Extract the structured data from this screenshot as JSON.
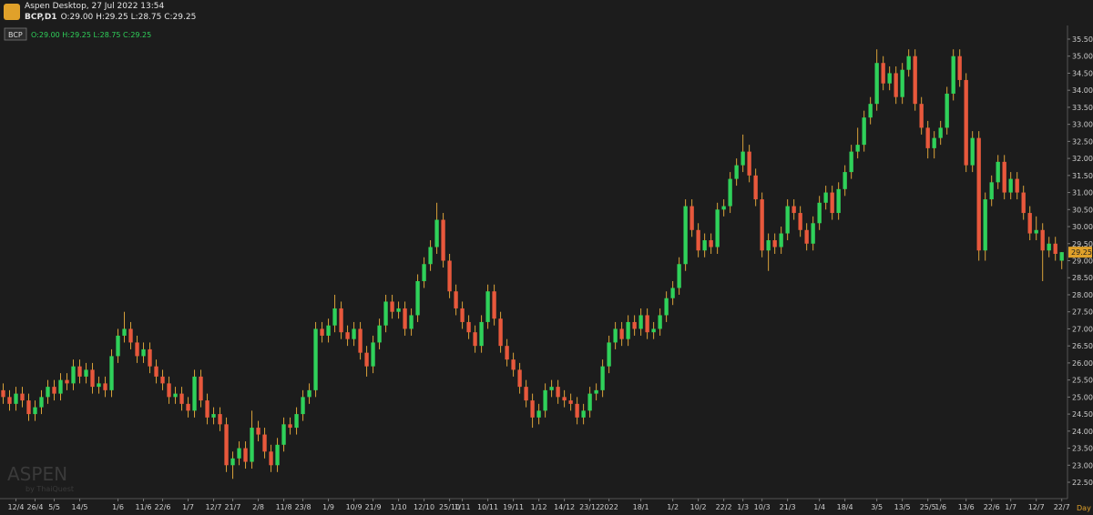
{
  "header": {
    "app": "Aspen Desktop, 27 Jul 2022 13:54",
    "symbol": "BCP,D1",
    "ohlc": "O:29.00 H:29.25 L:28.75 C:29.25"
  },
  "legend": {
    "symbol": "BCP",
    "ohlc": "O:29.00 H:29.25 L:28.75 C:29.25"
  },
  "watermark": {
    "brand": "ASPEN",
    "by": "by ThaiQuest"
  },
  "chart_data": {
    "type": "candlestick",
    "x_unit": "Day",
    "up_color": "#2fd15a",
    "down_color": "#e8583c",
    "wick_color": "#d9a23a",
    "xlim": [
      -0.5,
      166.9
    ],
    "xticks": [
      {
        "value": 2,
        "label": "12/4"
      },
      {
        "value": 5,
        "label": "26/4"
      },
      {
        "value": 8,
        "label": "5/5"
      },
      {
        "value": 12,
        "label": "14/5"
      },
      {
        "value": 18,
        "label": "1/6"
      },
      {
        "value": 22,
        "label": "11/6"
      },
      {
        "value": 25,
        "label": "22/6"
      },
      {
        "value": 29,
        "label": "1/7"
      },
      {
        "value": 33,
        "label": "12/7"
      },
      {
        "value": 36,
        "label": "21/7"
      },
      {
        "value": 40,
        "label": "2/8"
      },
      {
        "value": 44,
        "label": "11/8"
      },
      {
        "value": 47,
        "label": "23/8"
      },
      {
        "value": 51,
        "label": "1/9"
      },
      {
        "value": 55,
        "label": "10/9"
      },
      {
        "value": 58,
        "label": "21/9"
      },
      {
        "value": 62,
        "label": "1/10"
      },
      {
        "value": 66,
        "label": "12/10"
      },
      {
        "value": 70,
        "label": "25/10"
      },
      {
        "value": 72,
        "label": "1/11"
      },
      {
        "value": 76,
        "label": "10/11"
      },
      {
        "value": 80,
        "label": "19/11"
      },
      {
        "value": 84,
        "label": "1/12"
      },
      {
        "value": 88,
        "label": "14/12"
      },
      {
        "value": 92,
        "label": "23/12"
      },
      {
        "value": 95,
        "label": "2022"
      },
      {
        "value": 100,
        "label": "18/1"
      },
      {
        "value": 105,
        "label": "1/2"
      },
      {
        "value": 109,
        "label": "10/2"
      },
      {
        "value": 113,
        "label": "22/2"
      },
      {
        "value": 116,
        "label": "1/3"
      },
      {
        "value": 119,
        "label": "10/3"
      },
      {
        "value": 123,
        "label": "21/3"
      },
      {
        "value": 128,
        "label": "1/4"
      },
      {
        "value": 132,
        "label": "18/4"
      },
      {
        "value": 137,
        "label": "3/5"
      },
      {
        "value": 141,
        "label": "13/5"
      },
      {
        "value": 145,
        "label": "25/5"
      },
      {
        "value": 147,
        "label": "1/6"
      },
      {
        "value": 151,
        "label": "13/6"
      },
      {
        "value": 155,
        "label": "22/6"
      },
      {
        "value": 158,
        "label": "1/7"
      },
      {
        "value": 162,
        "label": "12/7"
      },
      {
        "value": 166,
        "label": "22/7"
      }
    ],
    "ylim": [
      22.02,
      35.9
    ],
    "yticks": [
      {
        "value": 22.5,
        "label": "22.50"
      },
      {
        "value": 23,
        "label": "23.00"
      },
      {
        "value": 23.5,
        "label": "23.50"
      },
      {
        "value": 24,
        "label": "24.00"
      },
      {
        "value": 24.5,
        "label": "24.50"
      },
      {
        "value": 25,
        "label": "25.00"
      },
      {
        "value": 25.5,
        "label": "25.50"
      },
      {
        "value": 26,
        "label": "26.00"
      },
      {
        "value": 26.5,
        "label": "26.50"
      },
      {
        "value": 27,
        "label": "27.00"
      },
      {
        "value": 27.5,
        "label": "27.50"
      },
      {
        "value": 28,
        "label": "28.00"
      },
      {
        "value": 28.5,
        "label": "28.50"
      },
      {
        "value": 29,
        "label": "29.00"
      },
      {
        "value": 29.5,
        "label": "29.50"
      },
      {
        "value": 30,
        "label": "30.00"
      },
      {
        "value": 30.5,
        "label": "30.50"
      },
      {
        "value": 31,
        "label": "31.00"
      },
      {
        "value": 31.5,
        "label": "31.50"
      },
      {
        "value": 32,
        "label": "32.00"
      },
      {
        "value": 32.5,
        "label": "32.50"
      },
      {
        "value": 33,
        "label": "33.00"
      },
      {
        "value": 33.5,
        "label": "33.50"
      },
      {
        "value": 34,
        "label": "34.00"
      },
      {
        "value": 34.5,
        "label": "34.50"
      },
      {
        "value": 35,
        "label": "35.00"
      },
      {
        "value": 35.5,
        "label": "35.50"
      }
    ],
    "open": [
      25.2,
      25.0,
      24.8,
      25.1,
      24.9,
      24.5,
      24.7,
      25.0,
      25.3,
      25.1,
      25.5,
      25.4,
      25.9,
      25.6,
      25.8,
      25.3,
      25.4,
      25.2,
      26.2,
      26.8,
      27.0,
      26.6,
      26.2,
      26.4,
      25.9,
      25.6,
      25.4,
      25.0,
      25.1,
      24.8,
      24.6,
      25.6,
      24.9,
      24.4,
      24.5,
      24.2,
      23.0,
      23.2,
      23.5,
      23.1,
      24.1,
      23.9,
      23.4,
      23.0,
      23.6,
      24.2,
      24.1,
      24.5,
      25.0,
      25.2,
      27.0,
      26.8,
      27.1,
      27.6,
      26.9,
      26.7,
      27.0,
      26.3,
      25.9,
      26.6,
      27.1,
      27.8,
      27.5,
      27.6,
      27.0,
      27.4,
      28.4,
      28.9,
      29.4,
      30.2,
      29.0,
      28.1,
      27.6,
      27.2,
      26.9,
      26.5,
      27.2,
      28.1,
      27.3,
      26.5,
      26.1,
      25.8,
      25.3,
      24.9,
      24.4,
      24.6,
      25.2,
      25.3,
      25.0,
      24.9,
      24.8,
      24.4,
      24.6,
      25.1,
      25.2,
      25.9,
      26.6,
      27.0,
      26.7,
      27.2,
      27.0,
      27.4,
      26.9,
      27.0,
      27.4,
      27.9,
      28.2,
      28.9,
      30.6,
      29.9,
      29.3,
      29.6,
      29.4,
      30.5,
      30.6,
      31.4,
      31.8,
      32.2,
      31.5,
      30.8,
      29.3,
      29.6,
      29.4,
      29.8,
      30.6,
      30.4,
      29.9,
      29.5,
      30.1,
      30.7,
      31.0,
      30.4,
      31.1,
      31.6,
      32.2,
      32.4,
      33.2,
      33.6,
      34.8,
      34.2,
      34.5,
      33.8,
      34.6,
      35.0,
      33.6,
      32.9,
      32.3,
      32.6,
      32.9,
      33.9,
      35.0,
      34.3,
      31.8,
      32.6,
      29.3,
      30.8,
      31.3,
      31.9,
      31.0,
      31.4,
      31.0,
      30.4,
      29.8,
      29.9,
      29.3,
      29.5,
      29.0
    ],
    "high": [
      25.4,
      25.2,
      25.3,
      25.3,
      25.1,
      24.9,
      25.2,
      25.5,
      25.5,
      25.7,
      25.7,
      26.1,
      26.1,
      26.0,
      26.0,
      25.6,
      25.6,
      26.4,
      27.0,
      27.5,
      27.2,
      26.8,
      26.6,
      26.6,
      26.1,
      25.8,
      25.6,
      25.3,
      25.3,
      25.0,
      25.8,
      25.8,
      25.1,
      24.7,
      24.7,
      24.4,
      23.4,
      23.7,
      23.7,
      24.6,
      24.3,
      24.1,
      23.6,
      23.8,
      24.4,
      24.4,
      24.7,
      25.2,
      25.4,
      27.2,
      27.2,
      27.3,
      28.0,
      27.8,
      27.1,
      27.2,
      27.2,
      26.5,
      26.8,
      27.3,
      28.0,
      28.0,
      27.8,
      27.8,
      27.6,
      28.6,
      29.1,
      29.6,
      30.7,
      30.4,
      29.2,
      28.3,
      27.8,
      27.4,
      27.1,
      27.4,
      28.3,
      28.3,
      27.5,
      26.7,
      26.3,
      26.0,
      25.5,
      25.1,
      24.8,
      25.4,
      25.5,
      25.5,
      25.2,
      25.1,
      25.0,
      24.8,
      25.3,
      25.4,
      26.1,
      26.8,
      27.2,
      27.2,
      27.4,
      27.4,
      27.6,
      27.6,
      27.2,
      27.6,
      28.1,
      28.4,
      29.1,
      30.8,
      30.8,
      30.1,
      29.8,
      29.8,
      30.7,
      30.8,
      31.6,
      32.0,
      32.7,
      32.4,
      31.7,
      31.0,
      29.8,
      29.8,
      30.0,
      30.8,
      30.8,
      30.6,
      30.1,
      30.3,
      30.9,
      31.2,
      31.2,
      31.3,
      31.8,
      32.4,
      32.9,
      33.4,
      33.8,
      35.2,
      35.0,
      34.7,
      34.7,
      34.8,
      35.2,
      35.2,
      33.8,
      33.1,
      32.8,
      33.1,
      34.1,
      35.2,
      35.2,
      34.5,
      32.8,
      32.8,
      31.0,
      31.5,
      32.1,
      32.1,
      31.6,
      31.6,
      31.2,
      30.6,
      30.3,
      30.1,
      29.7,
      29.7,
      29.25
    ],
    "low": [
      24.8,
      24.6,
      24.6,
      24.7,
      24.3,
      24.3,
      24.5,
      24.8,
      24.9,
      24.9,
      25.2,
      25.2,
      25.4,
      25.4,
      25.1,
      25.1,
      25.0,
      25.0,
      26.0,
      26.6,
      26.4,
      26.0,
      26.0,
      25.7,
      25.4,
      25.2,
      24.8,
      24.8,
      24.6,
      24.4,
      24.4,
      24.7,
      24.2,
      24.2,
      24.0,
      22.8,
      22.6,
      23.0,
      22.9,
      22.9,
      23.7,
      23.2,
      22.8,
      22.8,
      23.4,
      23.9,
      23.9,
      24.3,
      24.8,
      25.0,
      26.6,
      26.6,
      26.9,
      26.7,
      26.5,
      26.5,
      26.1,
      25.6,
      25.7,
      26.4,
      26.9,
      27.3,
      27.3,
      26.8,
      26.8,
      27.2,
      28.2,
      28.7,
      29.2,
      28.8,
      27.9,
      27.4,
      27.0,
      26.7,
      26.3,
      26.3,
      27.0,
      27.1,
      26.3,
      25.9,
      25.6,
      25.1,
      24.7,
      24.1,
      24.2,
      24.4,
      25.0,
      24.8,
      24.7,
      24.6,
      24.2,
      24.2,
      24.4,
      24.9,
      25.0,
      25.7,
      26.4,
      26.5,
      26.5,
      26.8,
      26.8,
      26.7,
      26.7,
      26.8,
      27.2,
      27.7,
      28.0,
      28.7,
      29.7,
      29.1,
      29.1,
      29.2,
      29.2,
      30.3,
      30.4,
      31.2,
      31.6,
      31.3,
      30.6,
      29.1,
      28.7,
      29.2,
      29.2,
      29.6,
      30.2,
      29.7,
      29.3,
      29.3,
      29.9,
      30.5,
      30.2,
      30.2,
      30.9,
      31.4,
      32.0,
      32.2,
      33.0,
      33.4,
      34.0,
      34.0,
      33.6,
      33.6,
      34.4,
      33.4,
      32.7,
      32.0,
      32.0,
      32.4,
      32.7,
      33.7,
      34.1,
      31.6,
      31.6,
      29.0,
      29.0,
      30.6,
      31.1,
      30.8,
      30.8,
      30.8,
      30.2,
      29.6,
      29.6,
      28.4,
      29.1,
      29.0,
      28.75
    ],
    "close": [
      25.0,
      24.8,
      25.1,
      24.9,
      24.5,
      24.7,
      25.0,
      25.3,
      25.1,
      25.5,
      25.4,
      25.9,
      25.6,
      25.8,
      25.3,
      25.4,
      25.2,
      26.2,
      26.8,
      27.0,
      26.6,
      26.2,
      26.4,
      25.9,
      25.6,
      25.4,
      25.0,
      25.1,
      24.8,
      24.6,
      25.6,
      24.9,
      24.4,
      24.5,
      24.2,
      23.0,
      23.2,
      23.5,
      23.1,
      24.1,
      23.9,
      23.4,
      23.0,
      23.6,
      24.2,
      24.1,
      24.5,
      25.0,
      25.2,
      27.0,
      26.8,
      27.1,
      27.6,
      26.9,
      26.7,
      27.0,
      26.3,
      25.9,
      26.6,
      27.1,
      27.8,
      27.5,
      27.6,
      27.0,
      27.4,
      28.4,
      28.9,
      29.4,
      30.2,
      29.0,
      28.1,
      27.6,
      27.2,
      26.9,
      26.5,
      27.2,
      28.1,
      27.3,
      26.5,
      26.1,
      25.8,
      25.3,
      24.9,
      24.4,
      24.6,
      25.2,
      25.3,
      25.0,
      24.9,
      24.8,
      24.4,
      24.6,
      25.1,
      25.2,
      25.9,
      26.6,
      27.0,
      26.7,
      27.2,
      27.0,
      27.4,
      26.9,
      27.0,
      27.4,
      27.9,
      28.2,
      28.9,
      30.6,
      29.9,
      29.3,
      29.6,
      29.4,
      30.5,
      30.6,
      31.4,
      31.8,
      32.2,
      31.5,
      30.8,
      29.3,
      29.6,
      29.4,
      29.8,
      30.6,
      30.4,
      29.9,
      29.5,
      30.1,
      30.7,
      31.0,
      30.4,
      31.1,
      31.6,
      32.2,
      32.4,
      33.2,
      33.6,
      34.8,
      34.2,
      34.5,
      33.8,
      34.6,
      35.0,
      33.6,
      32.9,
      32.3,
      32.6,
      32.9,
      33.9,
      35.0,
      34.3,
      31.8,
      32.6,
      29.3,
      30.8,
      31.3,
      31.9,
      31.0,
      31.4,
      31.0,
      30.4,
      29.8,
      29.9,
      29.3,
      29.5,
      29.2,
      29.25
    ]
  }
}
